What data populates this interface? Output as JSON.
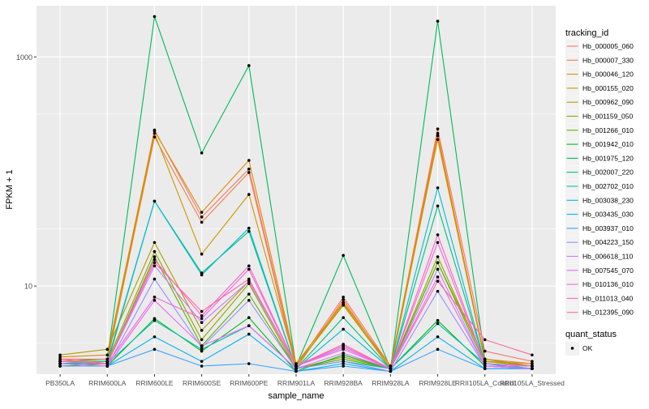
{
  "chart_data": {
    "type": "line",
    "xlabel": "sample_name",
    "ylabel": "FPKM + 1",
    "y_scale": "log10",
    "ylim": [
      1.7,
      2800
    ],
    "y_ticks": [
      {
        "value": 10,
        "label": "10"
      },
      {
        "value": 1000,
        "label": "1000"
      }
    ],
    "grid": true,
    "categories": [
      "PB350LA",
      "RRIM600LA",
      "RRIM600LE",
      "RRIM600SE",
      "RRIM600PE",
      "RRIM901LA",
      "RRIM928BA",
      "RRIM928LA",
      "RRIM928LE",
      "RRII105LA_Control",
      "RRII105LA_Stressed"
    ],
    "legend": {
      "title": "tracking_id",
      "position": "right",
      "entries": [
        {
          "name": "Hb_000005_060",
          "color": "#F8766D"
        },
        {
          "name": "Hb_000007_330",
          "color": "#EF7F49"
        },
        {
          "name": "Hb_000046_120",
          "color": "#E18A00"
        },
        {
          "name": "Hb_000155_020",
          "color": "#CC9600"
        },
        {
          "name": "Hb_000962_090",
          "color": "#B09C00"
        },
        {
          "name": "Hb_001159_050",
          "color": "#8FA500"
        },
        {
          "name": "Hb_001266_010",
          "color": "#5BB300"
        },
        {
          "name": "Hb_001942_010",
          "color": "#00B81F"
        },
        {
          "name": "Hb_001975_120",
          "color": "#00BA5A"
        },
        {
          "name": "Hb_002007_220",
          "color": "#00BF7D"
        },
        {
          "name": "Hb_002702_010",
          "color": "#00C0B0"
        },
        {
          "name": "Hb_003038_230",
          "color": "#00BCD6"
        },
        {
          "name": "Hb_003435_030",
          "color": "#00B4EF"
        },
        {
          "name": "Hb_003937_010",
          "color": "#35A2FF"
        },
        {
          "name": "Hb_004223_150",
          "color": "#9590FF"
        },
        {
          "name": "Hb_006618_110",
          "color": "#C77CFF"
        },
        {
          "name": "Hb_007545_070",
          "color": "#E76BF3"
        },
        {
          "name": "Hb_010136_010",
          "color": "#F564E3"
        },
        {
          "name": "Hb_011013_040",
          "color": "#FF61C3"
        },
        {
          "name": "Hb_012395_090",
          "color": "#FF67A4"
        }
      ]
    },
    "legend2": {
      "title": "quant_status",
      "entries": [
        {
          "name": "OK"
        }
      ]
    },
    "series": [
      {
        "name": "Hb_001975_120",
        "color": "#00BA5A",
        "values": [
          2.2,
          2.3,
          2250,
          145,
          840,
          2.0,
          18.5,
          1.9,
          2050,
          2.3,
          2.0
        ]
      },
      {
        "name": "Hb_002007_220",
        "color": "#00BF7D",
        "values": [
          2.1,
          2.1,
          55,
          13,
          30,
          1.9,
          5.3,
          1.9,
          50,
          2.1,
          1.9
        ]
      },
      {
        "name": "Hb_000005_060",
        "color": "#F8766D",
        "values": [
          2.3,
          2.3,
          230,
          40,
          105,
          2.0,
          8.0,
          2.0,
          235,
          2.7,
          2.2
        ]
      },
      {
        "name": "Hb_000007_330",
        "color": "#EF7F49",
        "values": [
          2.2,
          2.2,
          200,
          36,
          98,
          1.9,
          7.6,
          1.9,
          205,
          2.3,
          2.1
        ]
      },
      {
        "name": "Hb_000046_120",
        "color": "#E18A00",
        "values": [
          2.4,
          2.5,
          225,
          44,
          125,
          2.1,
          7.2,
          2.0,
          215,
          2.2,
          2.1
        ]
      },
      {
        "name": "Hb_000155_020",
        "color": "#CC9600",
        "values": [
          2.2,
          2.2,
          215,
          19,
          63,
          2.0,
          7.0,
          1.9,
          190,
          2.2,
          2.0
        ]
      },
      {
        "name": "Hb_000962_090",
        "color": "#B09C00",
        "values": [
          2.5,
          2.8,
          24,
          4.1,
          11,
          2.0,
          6.8,
          1.9,
          16,
          2.3,
          2.0
        ]
      },
      {
        "name": "Hb_001159_050",
        "color": "#8FA500",
        "values": [
          2.1,
          2.2,
          20,
          3.4,
          10.5,
          1.9,
          2.4,
          1.9,
          18,
          2.2,
          2.0
        ]
      },
      {
        "name": "Hb_001266_010",
        "color": "#5BB300",
        "values": [
          2.0,
          2.1,
          18,
          3.0,
          8.5,
          1.9,
          2.3,
          1.9,
          16,
          2.1,
          1.9
        ]
      },
      {
        "name": "Hb_001942_010",
        "color": "#00B81F",
        "values": [
          2.0,
          2.0,
          5.2,
          2.7,
          5.3,
          1.8,
          2.5,
          1.9,
          5.0,
          2.0,
          1.9
        ]
      },
      {
        "name": "Hb_002702_010",
        "color": "#00C0B0",
        "values": [
          2.1,
          2.1,
          5.0,
          2.8,
          4.5,
          1.9,
          2.2,
          1.9,
          4.7,
          2.1,
          1.9
        ]
      },
      {
        "name": "Hb_003038_230",
        "color": "#00BCD6",
        "values": [
          2.1,
          2.2,
          55,
          12.5,
          32,
          1.9,
          4.2,
          1.9,
          72,
          2.1,
          1.9
        ]
      },
      {
        "name": "Hb_003435_030",
        "color": "#00B4EF",
        "values": [
          2.0,
          2.0,
          3.6,
          2.2,
          3.8,
          1.8,
          2.1,
          1.8,
          3.6,
          1.9,
          1.9
        ]
      },
      {
        "name": "Hb_003937_010",
        "color": "#35A2FF",
        "values": [
          2.0,
          2.0,
          2.8,
          2.0,
          2.1,
          1.8,
          2.0,
          1.8,
          2.8,
          1.9,
          1.9
        ]
      },
      {
        "name": "Hb_004223_150",
        "color": "#9590FF",
        "values": [
          2.1,
          2.0,
          11.5,
          2.9,
          7.5,
          1.9,
          2.2,
          1.8,
          9.0,
          2.0,
          1.9
        ]
      },
      {
        "name": "Hb_006618_110",
        "color": "#C77CFF",
        "values": [
          2.2,
          2.1,
          15,
          4.8,
          11,
          2.0,
          2.9,
          1.9,
          14,
          2.0,
          2.0
        ]
      },
      {
        "name": "Hb_007545_070",
        "color": "#E76BF3",
        "values": [
          2.1,
          2.0,
          7.5,
          3.0,
          4.5,
          1.9,
          2.6,
          1.9,
          12,
          2.0,
          1.9
        ]
      },
      {
        "name": "Hb_010136_010",
        "color": "#F564E3",
        "values": [
          2.2,
          2.1,
          8.0,
          5.2,
          14,
          2.0,
          2.8,
          1.9,
          24,
          2.1,
          2.0
        ]
      },
      {
        "name": "Hb_011013_040",
        "color": "#FF61C3",
        "values": [
          2.2,
          2.1,
          17,
          5.5,
          15,
          2.0,
          3.0,
          1.9,
          28,
          2.1,
          2.0
        ]
      },
      {
        "name": "Hb_012395_090",
        "color": "#FF67A4",
        "values": [
          2.3,
          2.1,
          16,
          6.0,
          11.5,
          2.0,
          3.1,
          1.9,
          11,
          3.4,
          2.5
        ]
      }
    ]
  }
}
